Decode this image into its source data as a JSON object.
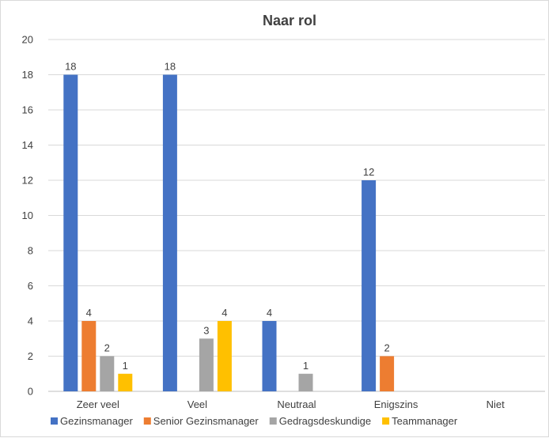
{
  "chart_data": {
    "type": "bar",
    "title": "Naar rol",
    "categories": [
      "Zeer veel",
      "Veel",
      "Neutraal",
      "Enigszins",
      "Niet"
    ],
    "series": [
      {
        "name": "Gezinsmanager",
        "color": "#4472C4",
        "values": [
          18,
          18,
          4,
          12,
          0
        ]
      },
      {
        "name": "Senior Gezinsmanager",
        "color": "#ED7D31",
        "values": [
          4,
          0,
          0,
          2,
          0
        ]
      },
      {
        "name": "Gedragsdeskundige",
        "color": "#A5A5A5",
        "values": [
          2,
          3,
          1,
          0,
          0
        ]
      },
      {
        "name": "Teammanager",
        "color": "#FFC000",
        "values": [
          1,
          4,
          0,
          0,
          0
        ]
      }
    ],
    "ylim": [
      0,
      20
    ],
    "yticks": [
      0,
      2,
      4,
      6,
      8,
      10,
      12,
      14,
      16,
      18,
      20
    ],
    "grid": true,
    "legend_position": "bottom",
    "xlabel": "",
    "ylabel": ""
  }
}
